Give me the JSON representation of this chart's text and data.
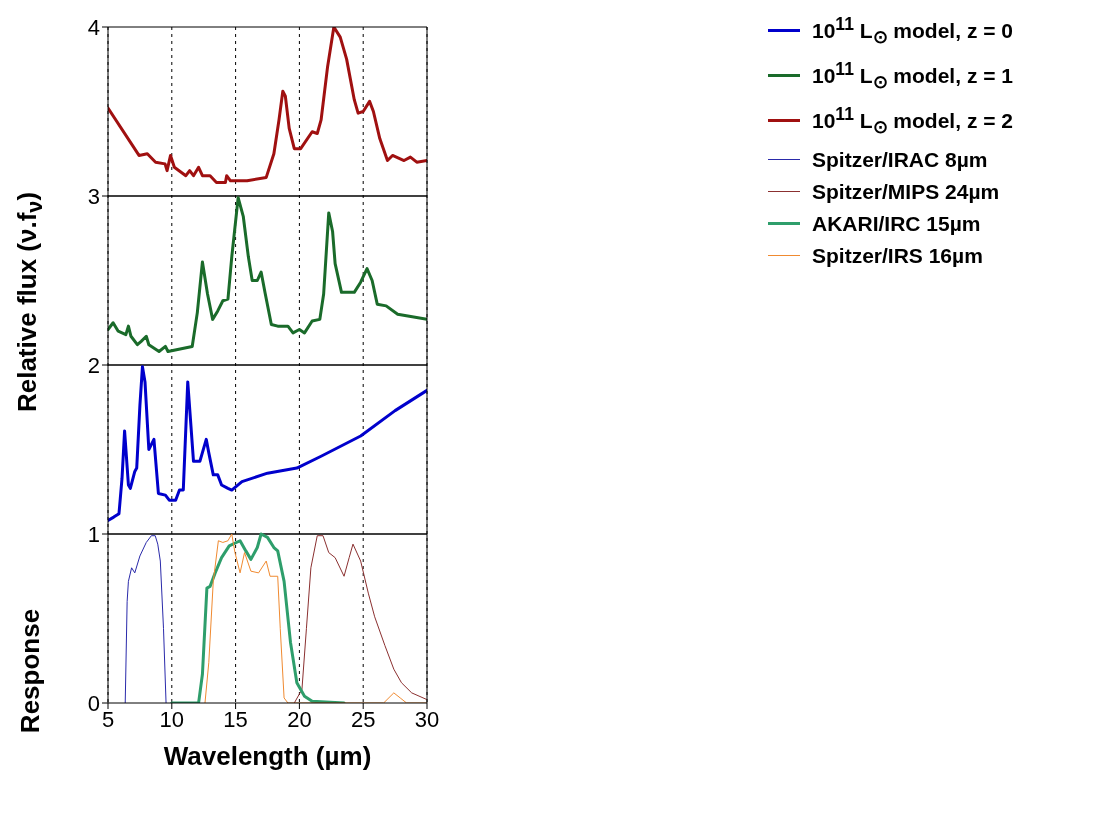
{
  "chart_data": {
    "type": "line",
    "xlabel": "Wavelength (µm)",
    "ylabel": "Relative flux (ν.f$_{ν}$)",
    "annotations": [
      "Response"
    ],
    "xlim": [
      5,
      30
    ],
    "ylim": [
      0,
      4
    ],
    "xticks": [
      5,
      10,
      15,
      20,
      25,
      30
    ],
    "yticks": [
      0,
      1,
      2,
      3,
      4
    ],
    "grid": "x",
    "legend": "top right",
    "marker": "none",
    "line_style": "solid",
    "ref_lines": [
      {
        "axis": "y",
        "value": 1,
        "color": "#000000"
      },
      {
        "axis": "y",
        "value": 2,
        "color": "#000000"
      },
      {
        "axis": "y",
        "value": 3,
        "color": "#000000"
      }
    ],
    "series": [
      {
        "name": "10$^{11}$ L$_{⊙}$ model, z = 0",
        "color": "#0000cc",
        "x": [
          5,
          5.45,
          5.86,
          6.1,
          6.3,
          6.6,
          6.75,
          7.1,
          7.25,
          7.5,
          7.7,
          7.9,
          8.2,
          8.6,
          8.95,
          9.5,
          9.8,
          10.3,
          10.6,
          10.9,
          11.25,
          11.5,
          11.7,
          12.2,
          12.7,
          12.9,
          13.25,
          13.6,
          13.9,
          14.4,
          14.7,
          15.5,
          17.5,
          19.8,
          21.7,
          24.8,
          27.5,
          30
        ],
        "values": [
          1.08,
          1.1,
          1.12,
          1.33,
          1.61,
          1.29,
          1.27,
          1.37,
          1.39,
          1.76,
          1.99,
          1.9,
          1.5,
          1.56,
          1.24,
          1.23,
          1.2,
          1.2,
          1.26,
          1.26,
          1.9,
          1.64,
          1.43,
          1.43,
          1.56,
          1.48,
          1.35,
          1.35,
          1.29,
          1.27,
          1.26,
          1.31,
          1.36,
          1.39,
          1.46,
          1.58,
          1.73,
          1.85
        ]
      },
      {
        "name": "10$^{11}$ L$_{⊙}$ model, z = 1",
        "color": "#1a6b2a",
        "x": [
          5,
          5.4,
          5.8,
          6.4,
          6.6,
          6.8,
          7.3,
          7.6,
          8,
          8.2,
          9,
          9.5,
          9.7,
          11.6,
          12,
          12.4,
          12.8,
          13.2,
          13.6,
          14,
          14.4,
          14.7,
          15.2,
          15.6,
          16,
          16.3,
          16.7,
          17,
          17.3,
          17.8,
          18.3,
          19.1,
          19.5,
          20,
          20.4,
          21,
          21.6,
          21.9,
          22.3,
          22.6,
          22.8,
          23.3,
          24.3,
          24.8,
          25.3,
          25.7,
          26.1,
          26.8,
          27.7,
          28.5,
          30
        ],
        "values": [
          2.21,
          2.25,
          2.2,
          2.18,
          2.23,
          2.17,
          2.12,
          2.14,
          2.17,
          2.12,
          2.08,
          2.11,
          2.08,
          2.11,
          2.31,
          2.61,
          2.42,
          2.27,
          2.32,
          2.38,
          2.39,
          2.64,
          2.99,
          2.88,
          2.64,
          2.5,
          2.5,
          2.55,
          2.43,
          2.24,
          2.23,
          2.23,
          2.19,
          2.21,
          2.19,
          2.26,
          2.27,
          2.42,
          2.9,
          2.79,
          2.6,
          2.43,
          2.43,
          2.49,
          2.57,
          2.5,
          2.36,
          2.35,
          2.3,
          2.29,
          2.27
        ]
      },
      {
        "name": "10$^{11}$ L$_{⊙}$ model, z = 2",
        "color": "#a01010",
        "x": [
          5,
          7.43,
          8.08,
          8.73,
          9.47,
          9.63,
          9.9,
          10.2,
          11.1,
          11.4,
          11.7,
          12.1,
          12.4,
          13,
          13.5,
          14.2,
          14.3,
          14.6,
          15.9,
          17.4,
          18,
          18.4,
          18.7,
          18.9,
          19.2,
          19.6,
          20.1,
          21,
          21.4,
          21.7,
          22.2,
          22.7,
          23.2,
          23.7,
          24.3,
          24.6,
          25,
          25.5,
          25.8,
          26.3,
          26.9,
          27.3,
          28.2,
          28.7,
          29.2,
          30
        ],
        "values": [
          3.52,
          3.24,
          3.25,
          3.2,
          3.19,
          3.15,
          3.24,
          3.17,
          3.12,
          3.15,
          3.12,
          3.17,
          3.12,
          3.12,
          3.08,
          3.08,
          3.12,
          3.09,
          3.09,
          3.11,
          3.25,
          3.45,
          3.62,
          3.59,
          3.4,
          3.28,
          3.28,
          3.38,
          3.37,
          3.45,
          3.76,
          4,
          3.94,
          3.81,
          3.57,
          3.49,
          3.5,
          3.56,
          3.5,
          3.34,
          3.21,
          3.24,
          3.21,
          3.23,
          3.2,
          3.21
        ]
      },
      {
        "name": "Spitzer/IRAC 8µm",
        "color": "#2a2aaa",
        "x": [
          6.35,
          6.5,
          6.6,
          6.85,
          7.1,
          7.5,
          8,
          8.4,
          8.7,
          8.9,
          9.1,
          9.35,
          9.55
        ],
        "values": [
          0,
          0.6,
          0.72,
          0.8,
          0.77,
          0.87,
          0.95,
          0.99,
          0.99,
          0.94,
          0.84,
          0.44,
          0
        ]
      },
      {
        "name": "Spitzer/MIPS 24µm",
        "color": "#8b3030",
        "x": [
          19.6,
          20.2,
          20.55,
          20.9,
          21.4,
          21.85,
          22.3,
          22.8,
          23.5,
          23.9,
          24.2,
          24.8,
          25.4,
          25.9,
          26.7,
          27.4,
          28,
          28.8,
          30
        ],
        "values": [
          0,
          0.08,
          0.44,
          0.8,
          0.99,
          0.99,
          0.89,
          0.86,
          0.75,
          0.86,
          0.94,
          0.84,
          0.65,
          0.51,
          0.34,
          0.2,
          0.12,
          0.06,
          0.02
        ]
      },
      {
        "name": "AKARI/IRC 15µm",
        "color": "#2e9e6b",
        "x": [
          10,
          12.1,
          12.4,
          12.75,
          13,
          13.4,
          13.9,
          14.5,
          15.35,
          15.8,
          16.2,
          16.7,
          17,
          17.5,
          18,
          18.3,
          18.8,
          19.3,
          19.8,
          20.4,
          21,
          23.5
        ],
        "values": [
          0,
          0,
          0.17,
          0.68,
          0.69,
          0.77,
          0.86,
          0.93,
          0.96,
          0.9,
          0.85,
          0.92,
          1,
          0.98,
          0.92,
          0.9,
          0.72,
          0.36,
          0.12,
          0.04,
          0.01,
          0
        ]
      },
      {
        "name": "Spitzer/IRS 16µm",
        "color": "#f08a30",
        "x": [
          12.6,
          12.9,
          13.25,
          13.65,
          14,
          14.4,
          14.7,
          14.95,
          15.35,
          15.7,
          16.2,
          16.8,
          17.4,
          17.7,
          18.3,
          18.5,
          18.8,
          19.1,
          26.6,
          27.4,
          27.9,
          28.4,
          30
        ],
        "values": [
          0,
          0.24,
          0.72,
          0.96,
          0.95,
          0.96,
          1,
          0.89,
          0.77,
          0.89,
          0.78,
          0.77,
          0.84,
          0.75,
          0.75,
          0.44,
          0.03,
          0,
          0,
          0.06,
          0.03,
          0,
          0
        ]
      }
    ]
  }
}
